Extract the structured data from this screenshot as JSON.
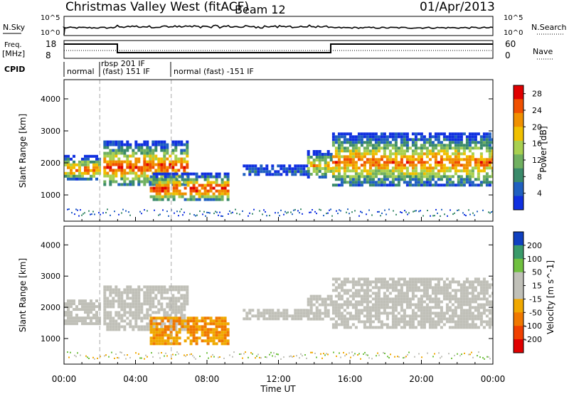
{
  "header": {
    "title": "Christmas Valley West (fitACF)",
    "beam": "Beam 12",
    "date": "01/Apr/2013"
  },
  "strip_labels": {
    "nsky": "N.Sky",
    "nsearch": "N.Search",
    "freq": "Freq.",
    "freq_unit": "[MHz]",
    "nave": "Nave",
    "cpid": "CPID"
  },
  "strip_ticks": {
    "nsky_left": [
      "10^5",
      "10^0"
    ],
    "nsearch_right": [
      "10^5",
      "10^0"
    ],
    "freq_left": [
      "18",
      "8"
    ],
    "nave_right": [
      "60",
      "0"
    ]
  },
  "cpid_segments": [
    {
      "label": "normal",
      "start_h": 0.0,
      "end_h": 2.0
    },
    {
      "label": "rbsp 201 IF",
      "start_h": 2.0,
      "end_h": 6.0
    },
    {
      "label": "(fast) 151 IF",
      "start_h": 2.0,
      "end_h": 6.0
    },
    {
      "label": "normal (fast) -151 IF",
      "start_h": 6.0,
      "end_h": 24.0
    }
  ],
  "colors": {
    "power_scale": [
      "#1030e0",
      "#2060c0",
      "#3a8a6a",
      "#70b060",
      "#a8d050",
      "#f0c000",
      "#f09000",
      "#f05000",
      "#e00000"
    ],
    "velocity_scale": [
      "#e00000",
      "#f04000",
      "#f07800",
      "#f0a800",
      "#c0c0b8",
      "#c0c0b8",
      "#70c040",
      "#3a9a6a",
      "#1040c0"
    ]
  },
  "chart_data": [
    {
      "type": "heatmap",
      "panel": "power",
      "ylabel": "Slant Range [km]",
      "xlabel": "",
      "x_ticks": [
        "00:00",
        "04:00",
        "08:00",
        "12:00",
        "16:00",
        "20:00",
        "00:00"
      ],
      "xlim_hours": [
        0,
        24
      ],
      "y_ticks": [
        1000,
        2000,
        3000,
        4000
      ],
      "ylim_km": [
        180,
        4600
      ],
      "colorbar": {
        "label": "Power [dB]",
        "ticks": [
          4,
          8,
          12,
          16,
          20,
          24,
          28
        ],
        "range": [
          0,
          30
        ]
      },
      "echo_bands": [
        {
          "t0": 0.0,
          "t1": 2.0,
          "r0": 1500,
          "r1": 2250,
          "peak_db": 24
        },
        {
          "t0": 2.2,
          "t1": 6.9,
          "r0": 1300,
          "r1": 2700,
          "peak_db": 26
        },
        {
          "t0": 4.8,
          "t1": 9.2,
          "r0": 850,
          "r1": 1700,
          "peak_db": 28
        },
        {
          "t0": 10.0,
          "t1": 13.6,
          "r0": 1650,
          "r1": 1950,
          "peak_db": 6
        },
        {
          "t0": 13.6,
          "t1": 15.0,
          "r0": 1600,
          "r1": 2400,
          "peak_db": 20
        },
        {
          "t0": 15.0,
          "t1": 24.0,
          "r0": 1350,
          "r1": 2950,
          "peak_db": 24
        }
      ]
    },
    {
      "type": "heatmap",
      "panel": "velocity",
      "ylabel": "Slant Range [km]",
      "xlabel": "Time UT",
      "x_ticks": [
        "00:00",
        "04:00",
        "08:00",
        "12:00",
        "16:00",
        "20:00",
        "00:00"
      ],
      "xlim_hours": [
        0,
        24
      ],
      "y_ticks": [
        1000,
        2000,
        3000,
        4000
      ],
      "ylim_km": [
        180,
        4600
      ],
      "colorbar": {
        "label": "Velocity [m s^-1]",
        "ticks": [
          200,
          100,
          50,
          15,
          -15,
          -50,
          -100,
          -200
        ],
        "range": [
          -250,
          250
        ]
      },
      "echo_bands": [
        {
          "t0": 0.0,
          "t1": 2.0,
          "r0": 1500,
          "r1": 2250,
          "v": 0
        },
        {
          "t0": 2.2,
          "t1": 6.9,
          "r0": 1300,
          "r1": 2700,
          "v": 0
        },
        {
          "t0": 4.8,
          "t1": 9.2,
          "r0": 850,
          "r1": 1700,
          "v": -80
        },
        {
          "t0": 10.0,
          "t1": 13.6,
          "r0": 1650,
          "r1": 1950,
          "v": 40
        },
        {
          "t0": 13.6,
          "t1": 15.0,
          "r0": 1600,
          "r1": 2400,
          "v": 60
        },
        {
          "t0": 15.0,
          "t1": 24.0,
          "r0": 1350,
          "r1": 2950,
          "v": 0
        }
      ]
    }
  ]
}
